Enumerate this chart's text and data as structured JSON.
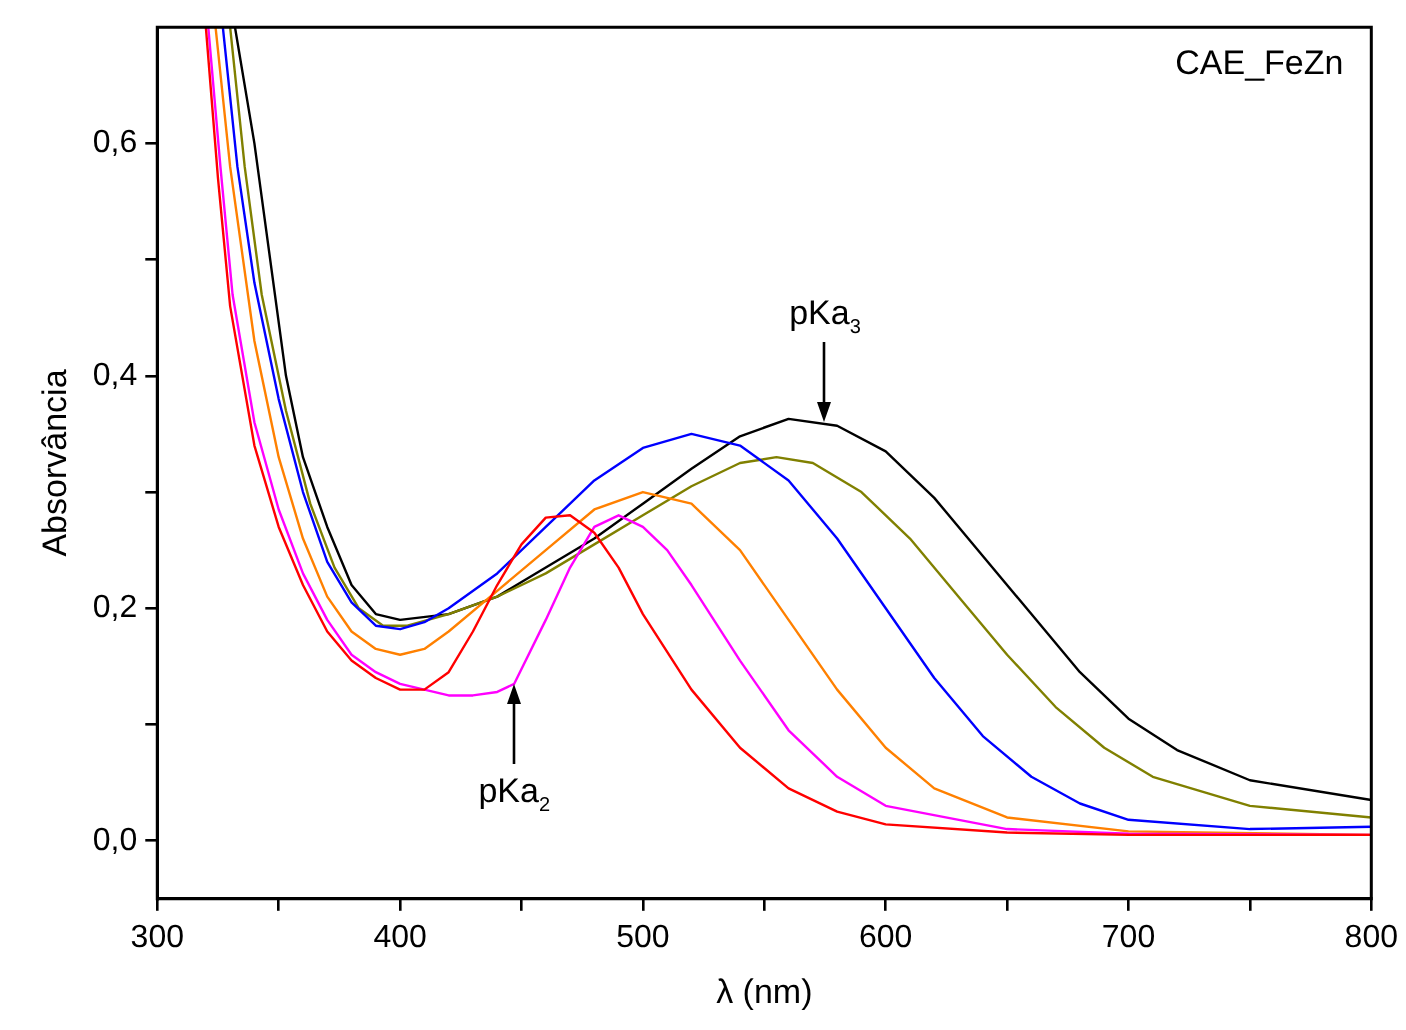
{
  "chart_data": {
    "type": "line",
    "xlabel": "λ (nm)",
    "ylabel": "Absorvância",
    "xlim": [
      300,
      800
    ],
    "xticks": [
      300,
      {
        "value": 350,
        "label": null
      },
      400,
      {
        "value": 450,
        "label": null
      },
      500,
      {
        "value": 550,
        "label": null
      },
      600,
      {
        "value": 650,
        "label": null
      },
      700,
      {
        "value": 750,
        "label": null
      },
      800
    ],
    "ylim": [
      -0.05,
      0.7
    ],
    "yticks": [
      {
        "value": 0,
        "label": "0,0"
      },
      {
        "value": 0.1,
        "label": null
      },
      {
        "value": 0.2,
        "label": "0,2"
      },
      {
        "value": 0.3,
        "label": null
      },
      {
        "value": 0.4,
        "label": "0,4"
      },
      {
        "value": 0.5,
        "label": null
      },
      {
        "value": 0.6,
        "label": "0,6"
      }
    ],
    "grid": false,
    "legend": false,
    "marker": "none",
    "line_style": "solid",
    "annotations": [
      "CAE_FeZn",
      {
        "text": "pKa$_{2}$",
        "x": 447,
        "y": 0.135
      },
      {
        "text": "pKa$_{3}$",
        "x": 575,
        "y": 0.36
      }
    ],
    "series": [
      {
        "color": "#ff0000",
        "x": [
          320,
          325,
          330,
          340,
          350,
          360,
          370,
          380,
          390,
          400,
          410,
          420,
          430,
          440,
          450,
          460,
          470,
          480,
          490,
          500,
          520,
          540,
          560,
          580,
          600,
          650,
          700,
          800
        ],
        "values": [
          0.7,
          0.57,
          0.46,
          0.34,
          0.27,
          0.22,
          0.18,
          0.155,
          0.14,
          0.13,
          0.13,
          0.145,
          0.18,
          0.22,
          0.255,
          0.278,
          0.28,
          0.265,
          0.235,
          0.195,
          0.13,
          0.08,
          0.045,
          0.025,
          0.014,
          0.007,
          0.005,
          0.005
        ]
      },
      {
        "color": "#ff00ff",
        "x": [
          321,
          326,
          331,
          340,
          350,
          360,
          370,
          380,
          390,
          400,
          410,
          420,
          430,
          440,
          447,
          460,
          470,
          480,
          490,
          500,
          510,
          520,
          540,
          560,
          580,
          600,
          650,
          700,
          800
        ],
        "values": [
          0.7,
          0.58,
          0.47,
          0.36,
          0.285,
          0.23,
          0.19,
          0.16,
          0.145,
          0.135,
          0.13,
          0.125,
          0.125,
          0.128,
          0.135,
          0.19,
          0.235,
          0.27,
          0.28,
          0.27,
          0.25,
          0.22,
          0.155,
          0.095,
          0.055,
          0.03,
          0.01,
          0.006,
          0.005
        ]
      },
      {
        "color": "#ff8000",
        "x": [
          324,
          330,
          340,
          350,
          360,
          370,
          380,
          390,
          400,
          410,
          420,
          440,
          460,
          480,
          500,
          520,
          540,
          560,
          580,
          600,
          620,
          650,
          700,
          800
        ],
        "values": [
          0.7,
          0.58,
          0.43,
          0.33,
          0.26,
          0.21,
          0.18,
          0.165,
          0.16,
          0.165,
          0.18,
          0.215,
          0.25,
          0.285,
          0.3,
          0.29,
          0.25,
          0.19,
          0.13,
          0.08,
          0.045,
          0.02,
          0.008,
          0.005
        ]
      },
      {
        "color": "#0000ff",
        "x": [
          327,
          333,
          340,
          350,
          360,
          370,
          380,
          390,
          400,
          410,
          420,
          440,
          460,
          480,
          500,
          520,
          540,
          560,
          580,
          600,
          620,
          640,
          660,
          680,
          700,
          750,
          800
        ],
        "values": [
          0.7,
          0.58,
          0.48,
          0.38,
          0.3,
          0.24,
          0.205,
          0.185,
          0.182,
          0.188,
          0.2,
          0.23,
          0.27,
          0.31,
          0.338,
          0.35,
          0.34,
          0.31,
          0.26,
          0.2,
          0.14,
          0.09,
          0.055,
          0.032,
          0.018,
          0.01,
          0.012
        ]
      },
      {
        "color": "#808000",
        "x": [
          330,
          336,
          343,
          353,
          363,
          373,
          383,
          393,
          403,
          420,
          440,
          460,
          480,
          500,
          520,
          540,
          555,
          570,
          590,
          610,
          630,
          650,
          670,
          690,
          710,
          750,
          800
        ],
        "values": [
          0.7,
          0.58,
          0.47,
          0.37,
          0.29,
          0.235,
          0.2,
          0.185,
          0.185,
          0.195,
          0.21,
          0.23,
          0.255,
          0.28,
          0.305,
          0.325,
          0.33,
          0.325,
          0.3,
          0.26,
          0.21,
          0.16,
          0.115,
          0.08,
          0.055,
          0.03,
          0.02
        ]
      },
      {
        "color": "#000000",
        "x": [
          332,
          340,
          353,
          360,
          370,
          380,
          390,
          400,
          420,
          440,
          460,
          480,
          500,
          520,
          540,
          560,
          580,
          600,
          620,
          640,
          660,
          680,
          700,
          720,
          750,
          800
        ],
        "values": [
          0.7,
          0.6,
          0.4,
          0.33,
          0.27,
          0.22,
          0.195,
          0.19,
          0.195,
          0.21,
          0.235,
          0.26,
          0.29,
          0.32,
          0.348,
          0.363,
          0.357,
          0.335,
          0.295,
          0.245,
          0.195,
          0.145,
          0.105,
          0.078,
          0.052,
          0.035
        ]
      }
    ]
  }
}
